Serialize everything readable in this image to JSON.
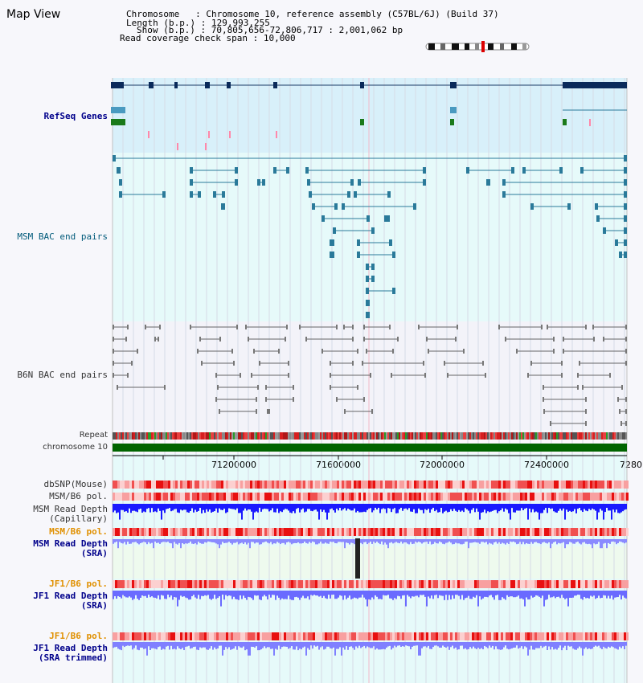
{
  "view_title": "Map View",
  "header": {
    "chromosome_label": "Chromosome",
    "chromosome_value": "Chromosome 10, reference assembly (C57BL/6J) (Build 37)",
    "length_label": "Length (b.p.)",
    "length_value": "129,993,255",
    "show_label": "Show (b.p.)",
    "show_value": "70,805,656-72,806,717 : 2,001,062 bp",
    "coverage_label": "Read coverage check span",
    "coverage_value": "10,000"
  },
  "tracks": {
    "refseq": "RefSeq Genes",
    "msm_bac": "MSM BAC end pairs",
    "b6n_bac": "B6N BAC end pairs",
    "repeat": "Repeat",
    "chromosome": "chromosome 10",
    "dbsnp": "dbSNP(Mouse)",
    "msm_b6_pol_1": "MSM/B6 pol.",
    "msm_depth_cap_1": "MSM Read Depth",
    "msm_depth_cap_2": "(Capillary)",
    "msm_b6_pol_2": "MSM/B6 pol.",
    "msm_depth_sra_1": "MSM Read Depth",
    "msm_depth_sra_2": "(SRA)",
    "jf1_b6_pol_1": "JF1/B6 pol.",
    "jf1_depth_sra_1": "JF1 Read Depth",
    "jf1_depth_sra_2": "(SRA)",
    "jf1_b6_pol_2": "JF1/B6 pol.",
    "jf1_depth_trim_1": "JF1 Read Depth",
    "jf1_depth_trim_2": "(SRA trimmed)"
  },
  "axis": {
    "ticks": [
      "71200000",
      "71600000",
      "72000000",
      "72400000",
      "7280"
    ]
  },
  "colors": {
    "refseq_bg": "#d8f0fa",
    "msm_bg": "#e6fafa",
    "b6n_bg": "#f3f3f9",
    "chromosome_bar": "#006400",
    "msm_feature": "#2a7a9a",
    "b6n_feature": "#777777",
    "depth_blue": "#1a1aff",
    "depth_light": "#8080ff",
    "pol_red": "#ff4040"
  }
}
